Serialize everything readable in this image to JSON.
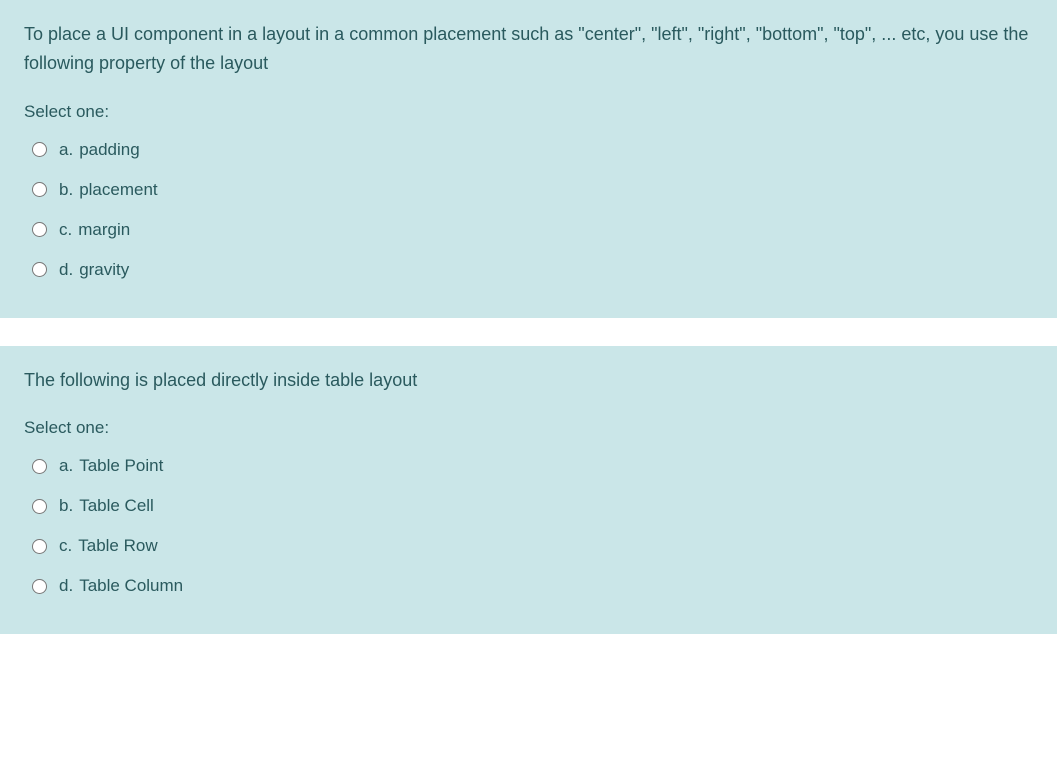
{
  "colors": {
    "background": "#cae6e8",
    "text": "#2a5a5e",
    "spacer": "#ffffff"
  },
  "typography": {
    "question_fontsize": 18,
    "option_fontsize": 17,
    "font_family": "Segoe UI, Tahoma, Geneva, Verdana, sans-serif"
  },
  "questions": [
    {
      "text": "To place a UI component in a layout in a common placement such as \"center\", \"left\", \"right\", \"bottom\", \"top\", ... etc, you use the following property of the layout",
      "select_label": "Select one:",
      "options": [
        {
          "letter": "a.",
          "text": "padding"
        },
        {
          "letter": "b.",
          "text": "placement"
        },
        {
          "letter": "c.",
          "text": "margin"
        },
        {
          "letter": "d.",
          "text": "gravity"
        }
      ]
    },
    {
      "text": "The following is placed directly inside table layout",
      "select_label": "Select one:",
      "options": [
        {
          "letter": "a.",
          "text": "Table Point"
        },
        {
          "letter": "b.",
          "text": "Table Cell"
        },
        {
          "letter": "c.",
          "text": "Table Row"
        },
        {
          "letter": "d.",
          "text": "Table Column"
        }
      ]
    }
  ]
}
